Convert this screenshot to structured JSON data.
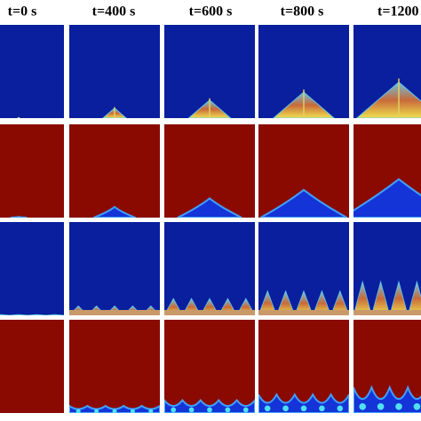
{
  "header": {
    "labels": [
      "t=0 s",
      "t=400 s",
      "t=600 s",
      "t=800 s",
      "t=1200"
    ]
  }
}
